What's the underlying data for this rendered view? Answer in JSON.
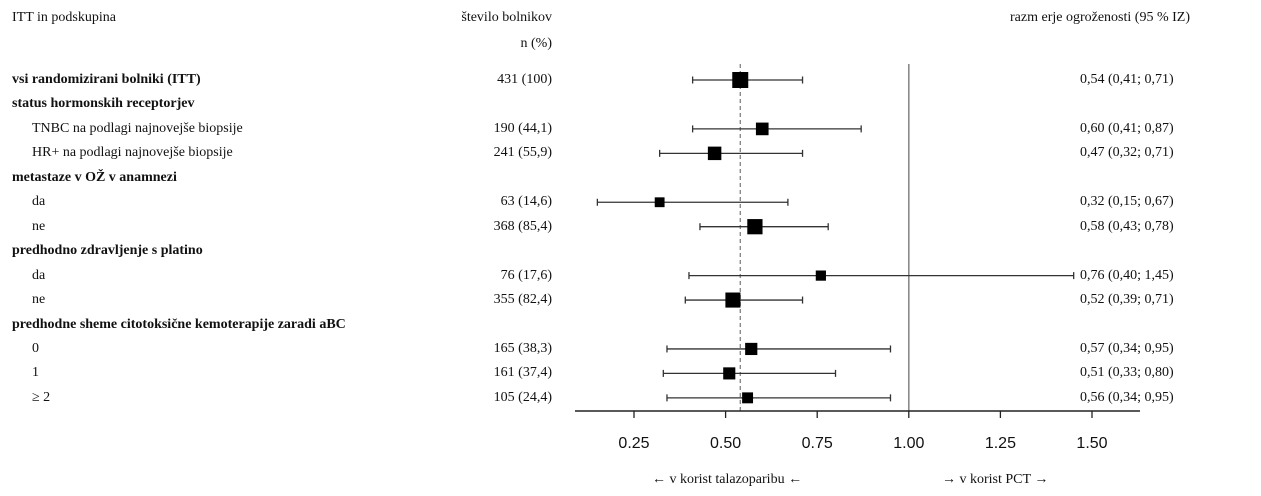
{
  "header": {
    "subgroup": "ITT in podskupina",
    "patients_line1": "število bolnikov",
    "patients_line2": "n (%)",
    "hr": "razm erje ogroženosti (95 % IZ)"
  },
  "favor_left": "← v korist talazoparibu ←",
  "favor_right": "→ v korist PCT →",
  "rows": [
    {
      "label": "vsi randomizirani bolniki (ITT)",
      "kind": "group",
      "n": "431 (100)",
      "hr_text": "0,54 (0,41; 0,71)"
    },
    {
      "label": "status hormonskih receptorjev",
      "kind": "group",
      "n": "",
      "hr_text": ""
    },
    {
      "label": "TNBC na podlagi najnovejše biopsije",
      "kind": "sub",
      "n": "190 (44,1)",
      "hr_text": "0,60 (0,41; 0,87)"
    },
    {
      "label": "HR+ na podlagi najnovejše biopsije",
      "kind": "sub",
      "n": "241 (55,9)",
      "hr_text": "0,47 (0,32; 0,71)"
    },
    {
      "label": "metastaze v OŽ v anamnezi",
      "kind": "group",
      "n": "",
      "hr_text": ""
    },
    {
      "label": "da",
      "kind": "sub",
      "n": "63 (14,6)",
      "hr_text": "0,32 (0,15; 0,67)"
    },
    {
      "label": "ne",
      "kind": "sub",
      "n": "368 (85,4)",
      "hr_text": "0,58 (0,43; 0,78)"
    },
    {
      "label": "predhodno zdravljenje s platino",
      "kind": "group",
      "n": "",
      "hr_text": ""
    },
    {
      "label": "da",
      "kind": "sub",
      "n": "76 (17,6)",
      "hr_text": "0,76 (0,40; 1,45)"
    },
    {
      "label": "ne",
      "kind": "sub",
      "n": "355 (82,4)",
      "hr_text": "0,52 (0,39; 0,71)"
    },
    {
      "label": "predhodne sheme citotoksične kemoterapije zaradi aBC",
      "kind": "group",
      "n": "",
      "hr_text": ""
    },
    {
      "label": "0",
      "kind": "sub",
      "n": "165 (38,3)",
      "hr_text": "0,57 (0,34; 0,95)"
    },
    {
      "label": "1",
      "kind": "sub",
      "n": "161 (37,4)",
      "hr_text": "0,51 (0,33; 0,80)"
    },
    {
      "label": "≥ 2",
      "kind": "sub",
      "n": "105 (24,4)",
      "hr_text": "0,56 (0,34; 0,95)"
    }
  ],
  "chart_data": {
    "type": "forest",
    "reference_line": 1.0,
    "overall_effect_line": 0.54,
    "xlim": [
      0.15,
      1.55
    ],
    "xticks": [
      0.25,
      0.5,
      0.75,
      1.0,
      1.25,
      1.5
    ],
    "xtick_labels": [
      "0.25",
      "0.50",
      "0.75",
      "1.00",
      "1.25",
      "1.50"
    ],
    "estimates": [
      {
        "row": 0,
        "hr": 0.54,
        "lo": 0.41,
        "hi": 0.71,
        "n": 431
      },
      {
        "row": 2,
        "hr": 0.6,
        "lo": 0.41,
        "hi": 0.87,
        "n": 190
      },
      {
        "row": 3,
        "hr": 0.47,
        "lo": 0.32,
        "hi": 0.71,
        "n": 241
      },
      {
        "row": 5,
        "hr": 0.32,
        "lo": 0.15,
        "hi": 0.67,
        "n": 63
      },
      {
        "row": 6,
        "hr": 0.58,
        "lo": 0.43,
        "hi": 0.78,
        "n": 368
      },
      {
        "row": 8,
        "hr": 0.76,
        "lo": 0.4,
        "hi": 1.45,
        "n": 76
      },
      {
        "row": 9,
        "hr": 0.52,
        "lo": 0.39,
        "hi": 0.71,
        "n": 355
      },
      {
        "row": 11,
        "hr": 0.57,
        "lo": 0.34,
        "hi": 0.95,
        "n": 165
      },
      {
        "row": 12,
        "hr": 0.51,
        "lo": 0.33,
        "hi": 0.8,
        "n": 161
      },
      {
        "row": 13,
        "hr": 0.56,
        "lo": 0.34,
        "hi": 0.95,
        "n": 105
      }
    ]
  }
}
